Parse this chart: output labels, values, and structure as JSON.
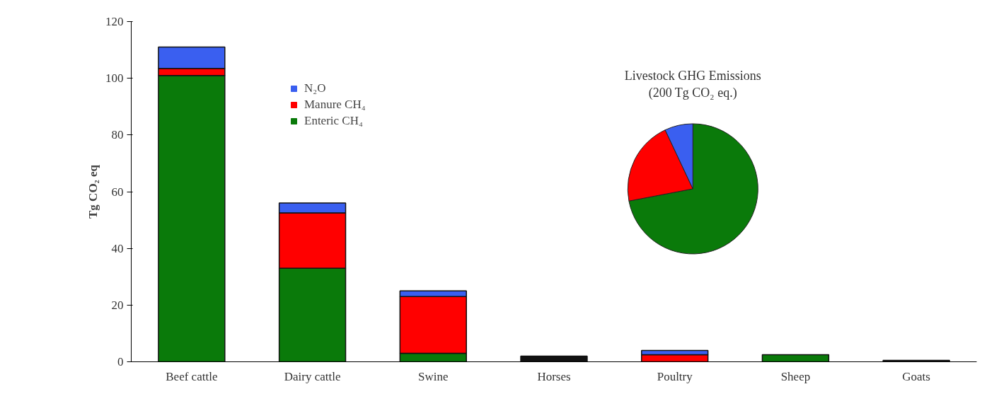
{
  "chart_data": [
    {
      "type": "bar",
      "stacked": true,
      "ylabel": "Tg CO₂ eq",
      "categories": [
        "Beef cattle",
        "Dairy cattle",
        "Swine",
        "Horses",
        "Poultry",
        "Sheep",
        "Goats"
      ],
      "series": [
        {
          "name": "Enteric CH₄",
          "color": "#0a7a0a",
          "colors": [
            "#0a7a0a",
            "#0a7a0a",
            "#0a7a0a",
            "#111111",
            "#0a7a0a",
            "#0a7a0a",
            "#111111"
          ],
          "values": [
            101,
            33,
            3,
            2,
            0,
            2.5,
            0.5
          ]
        },
        {
          "name": "Manure CH₄",
          "color": "#ff0000",
          "values": [
            2.5,
            19.5,
            20,
            0,
            2.5,
            0,
            0
          ]
        },
        {
          "name": "N₂O",
          "color": "#3a5ff0",
          "values": [
            7.5,
            3.5,
            2,
            0,
            1.5,
            0,
            0
          ]
        }
      ],
      "ylim": [
        0,
        120
      ],
      "yticks": [
        0,
        20,
        40,
        60,
        80,
        100,
        120
      ],
      "grid": false,
      "legend": "top left"
    },
    {
      "type": "pie",
      "title": "Livestock GHG Emissions",
      "subtitle": "(200 Tg CO₂ eq.)",
      "categories": [
        null,
        null,
        null
      ],
      "values": [
        72,
        21,
        7
      ],
      "colors": [
        "#0a7a0a",
        "#ff0000",
        "#3a5ff0"
      ]
    }
  ]
}
